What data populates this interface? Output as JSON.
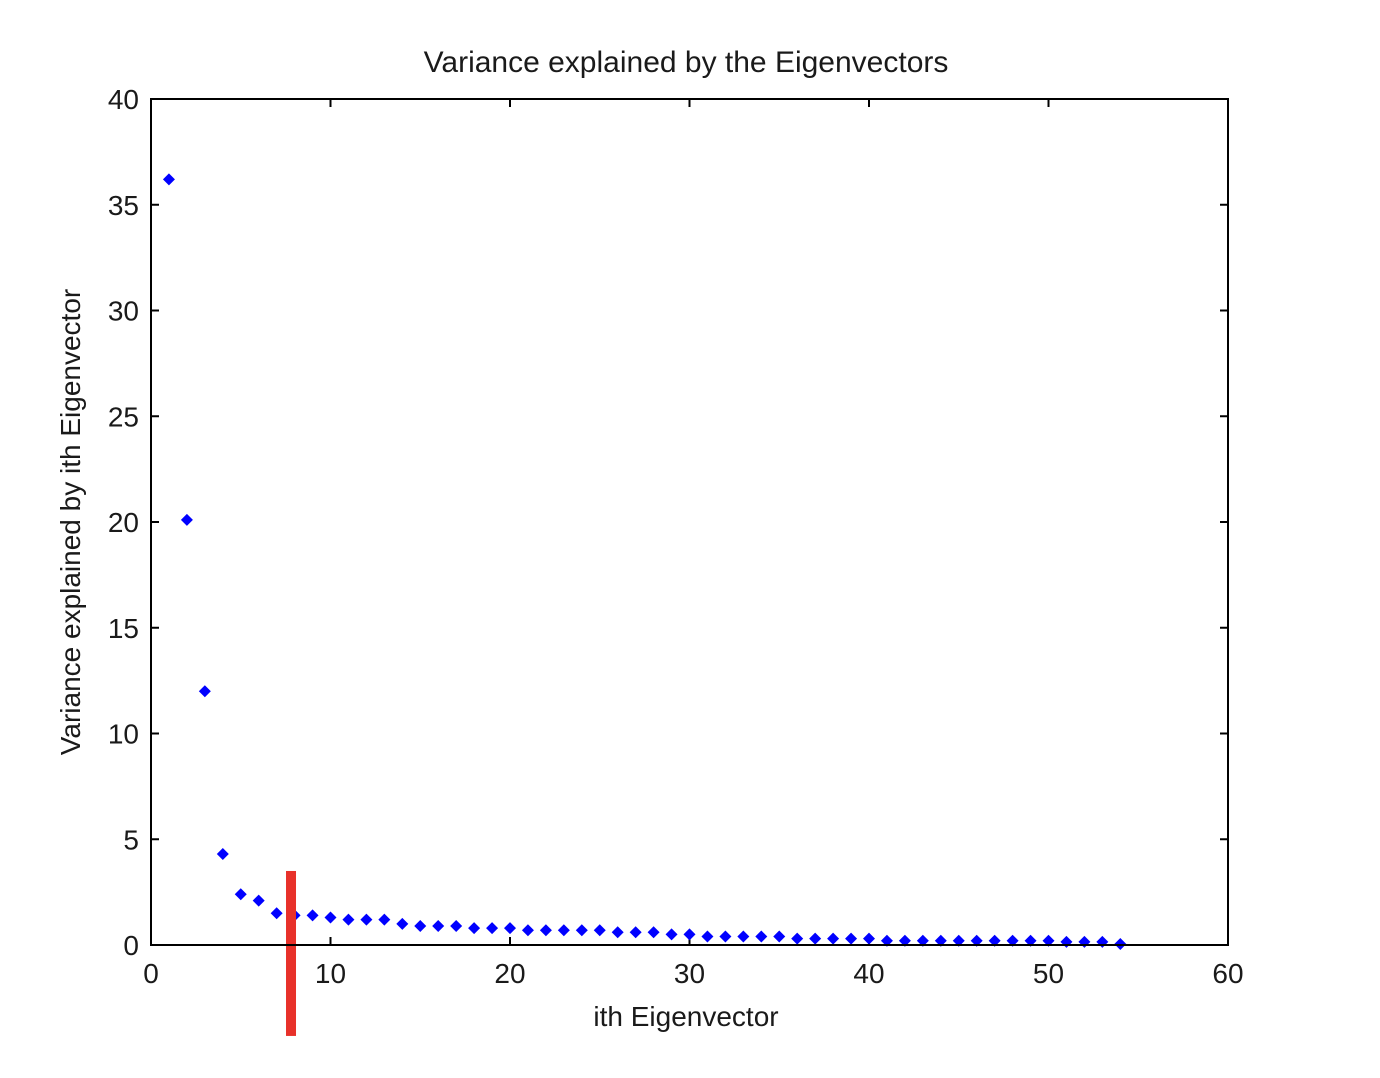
{
  "chart_data": {
    "type": "scatter",
    "title": "Variance explained by the Eigenvectors",
    "xlabel": "ith Eigenvector",
    "ylabel": "Variance explained by ith Eigenvector",
    "xlim": [
      0,
      60
    ],
    "ylim": [
      0,
      40
    ],
    "xticks": [
      0,
      10,
      20,
      30,
      40,
      50,
      60
    ],
    "yticks": [
      0,
      5,
      10,
      15,
      20,
      25,
      30,
      35,
      40
    ],
    "grid": false,
    "series": [
      {
        "marker": "diamond",
        "color": "#0000ff",
        "x": [
          1,
          2,
          3,
          4,
          5,
          6,
          7,
          8,
          9,
          10,
          11,
          12,
          13,
          14,
          15,
          16,
          17,
          18,
          19,
          20,
          21,
          22,
          23,
          24,
          25,
          26,
          27,
          28,
          29,
          30,
          31,
          32,
          33,
          34,
          35,
          36,
          37,
          38,
          39,
          40,
          41,
          42,
          43,
          44,
          45,
          46,
          47,
          48,
          49,
          50,
          51,
          52,
          53,
          54
        ],
        "y": [
          36.2,
          20.1,
          12.0,
          4.3,
          2.4,
          2.1,
          1.5,
          1.4,
          1.4,
          1.3,
          1.2,
          1.2,
          1.2,
          1.0,
          0.9,
          0.9,
          0.9,
          0.8,
          0.8,
          0.8,
          0.7,
          0.7,
          0.7,
          0.7,
          0.7,
          0.6,
          0.6,
          0.6,
          0.5,
          0.5,
          0.4,
          0.4,
          0.4,
          0.4,
          0.4,
          0.3,
          0.3,
          0.3,
          0.3,
          0.3,
          0.2,
          0.2,
          0.2,
          0.2,
          0.2,
          0.2,
          0.2,
          0.2,
          0.2,
          0.2,
          0.15,
          0.15,
          0.15,
          0.05
        ]
      }
    ],
    "annotations": [
      {
        "type": "vertical-bar",
        "x": 7.8,
        "y_from": -4.3,
        "y_to": 3.5,
        "color": "#e8312a"
      }
    ]
  }
}
